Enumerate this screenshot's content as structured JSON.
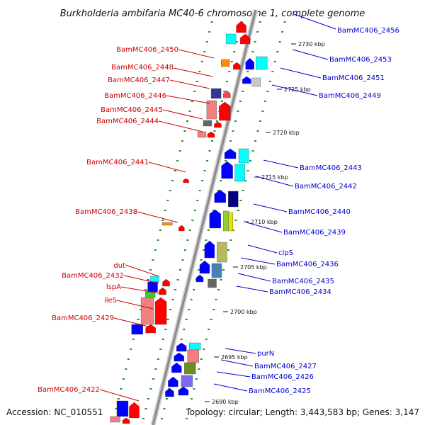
{
  "title": "Burkholderia ambifaria MC40-6 chromosome 1, complete genome",
  "footer": {
    "accession": "Accession: NC_010551",
    "summary": "Topology: circular; Length: 3,443,583 bp; Genes: 3,147"
  },
  "colors": {
    "left_label": "#cc0000",
    "right_label": "#0000cc",
    "backbone": "#888888",
    "tick_mark": "#228b22"
  },
  "ticks": [
    "2730 kbp",
    "2725 kbp",
    "2720 kbp",
    "2715 kbp",
    "2710 kbp",
    "2705 kbp",
    "2700 kbp",
    "2695 kbp",
    "2690 kbp"
  ],
  "left_labels": [
    "BamMC406_2450",
    "BamMC406_2448",
    "BamMC406_2447",
    "BamMC406_2446",
    "BamMC406_2445",
    "BamMC406_2444",
    "BamMC406_2441",
    "BamMC406_2438",
    "dut",
    "BamMC406_2432",
    "lspA",
    "ileS",
    "BamMC406_2429",
    "BamMC406_2422"
  ],
  "right_labels": [
    "BamMC406_2456",
    "BamMC406_2453",
    "BamMC406_2451",
    "BamMC406_2449",
    "BamMC406_2443",
    "BamMC406_2442",
    "BamMC406_2440",
    "BamMC406_2439",
    "clpS",
    "BamMC406_2436",
    "BamMC406_2435",
    "BamMC406_2434",
    "purN",
    "BamMC406_2427",
    "BamMC406_2426",
    "BamMC406_2425"
  ]
}
